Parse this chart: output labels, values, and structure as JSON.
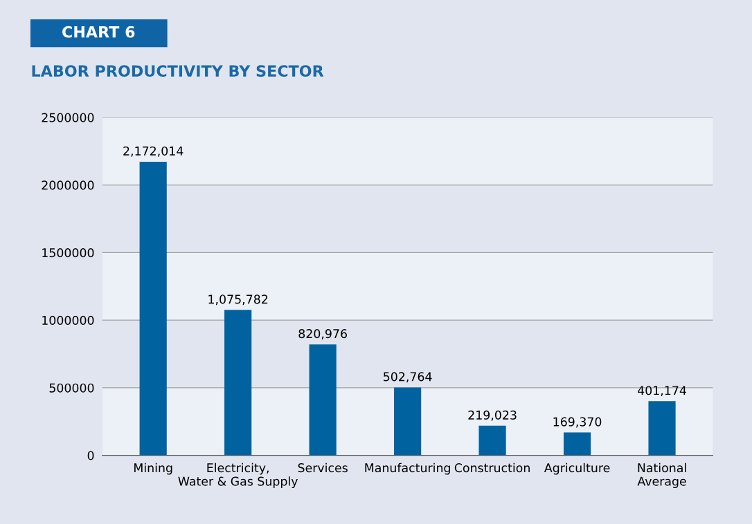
{
  "chart_data": {
    "type": "bar",
    "title": "LABOR PRODUCTIVITY BY SECTOR",
    "annotations": [
      "CHART 6"
    ],
    "categories": [
      "Mining",
      "Electricity,\nWater & Gas Supply",
      "Services",
      "Manufacturing",
      "Construction",
      "Agriculture",
      "National\nAverage"
    ],
    "values": [
      2172014,
      1075782,
      820976,
      502764,
      219023,
      169370,
      401174
    ],
    "value_labels": [
      "2,172,014",
      "1,075,782",
      "820,976",
      "502,764",
      "219,023",
      "169,370",
      "401,174"
    ],
    "color": "#0063a0",
    "ylim": [
      0,
      2500000
    ],
    "yticks": [
      0,
      500000,
      1000000,
      1500000,
      2000000,
      2500000
    ],
    "grid": "y",
    "bands": [
      {
        "axis": "y",
        "from": 0,
        "to": 500000,
        "color": "#ecf0f7"
      },
      {
        "axis": "y",
        "from": 1000000,
        "to": 1500000,
        "color": "#ecf0f7"
      },
      {
        "axis": "y",
        "from": 2000000,
        "to": 2500000,
        "color": "#ecf0f7"
      }
    ]
  }
}
